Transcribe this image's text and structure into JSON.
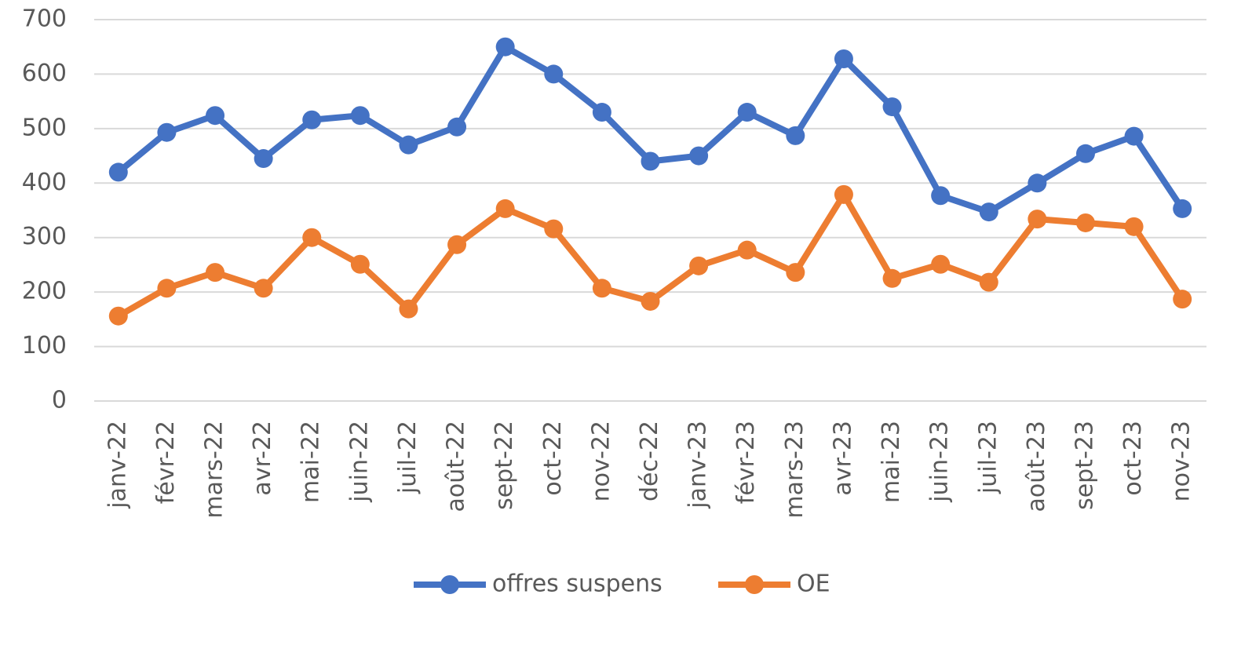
{
  "chart_data": {
    "type": "line",
    "categories": [
      "janv-22",
      "févr-22",
      "mars-22",
      "avr-22",
      "mai-22",
      "juin-22",
      "juil-22",
      "août-22",
      "sept-22",
      "oct-22",
      "nov-22",
      "déc-22",
      "janv-23",
      "févr-23",
      "mars-23",
      "avr-23",
      "mai-23",
      "juin-23",
      "juil-23",
      "août-23",
      "sept-23",
      "oct-23",
      "nov-23"
    ],
    "series": [
      {
        "name": "offres suspens",
        "color": "#4472c4",
        "values": [
          420,
          493,
          524,
          445,
          516,
          524,
          470,
          503,
          650,
          600,
          530,
          440,
          450,
          530,
          487,
          628,
          540,
          377,
          347,
          400,
          454,
          486,
          353
        ]
      },
      {
        "name": "OE",
        "color": "#ed7d31",
        "values": [
          156,
          207,
          236,
          207,
          300,
          251,
          169,
          287,
          353,
          316,
          207,
          183,
          248,
          277,
          236,
          379,
          225,
          251,
          218,
          334,
          327,
          320,
          187
        ]
      }
    ],
    "ylim": [
      0,
      700
    ],
    "yticks": [
      0,
      100,
      200,
      300,
      400,
      500,
      600,
      700
    ],
    "grid": true,
    "legend": "bottom"
  }
}
